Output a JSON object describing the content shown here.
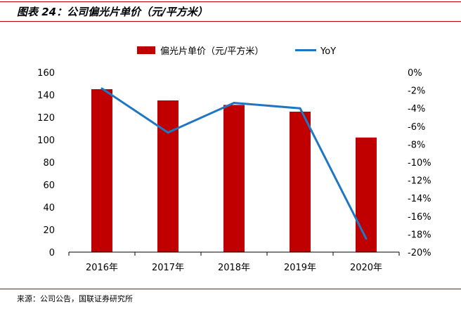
{
  "figure_title": "图表 24：公司偏光片单价（元/平方米）",
  "source_note": "来源：公司公告，国联证券研究所",
  "chart_data": {
    "type": "bar",
    "categories": [
      "2016年",
      "2017年",
      "2018年",
      "2019年",
      "2020年"
    ],
    "series": [
      {
        "name": "偏光片单价（元/平方米）",
        "type": "bar",
        "axis": "left",
        "values": [
          145,
          135,
          131,
          125,
          102
        ],
        "color": "#c00000"
      },
      {
        "name": "YoY",
        "type": "line",
        "axis": "right",
        "values": [
          -1.8,
          -6.7,
          -3.4,
          -4.0,
          -18.5
        ],
        "color": "#1f77c4"
      }
    ],
    "y_left": {
      "min": 0,
      "max": 160,
      "step": 20,
      "tick_labels": [
        "0",
        "20",
        "40",
        "60",
        "80",
        "100",
        "120",
        "140",
        "160"
      ]
    },
    "y_right": {
      "min": -20,
      "max": 0,
      "step": 2,
      "tick_labels": [
        "0%",
        "-2%",
        "-4%",
        "-6%",
        "-8%",
        "-10%",
        "-12%",
        "-14%",
        "-16%",
        "-18%",
        "-20%"
      ]
    },
    "legend_position": "top",
    "grid": false
  }
}
